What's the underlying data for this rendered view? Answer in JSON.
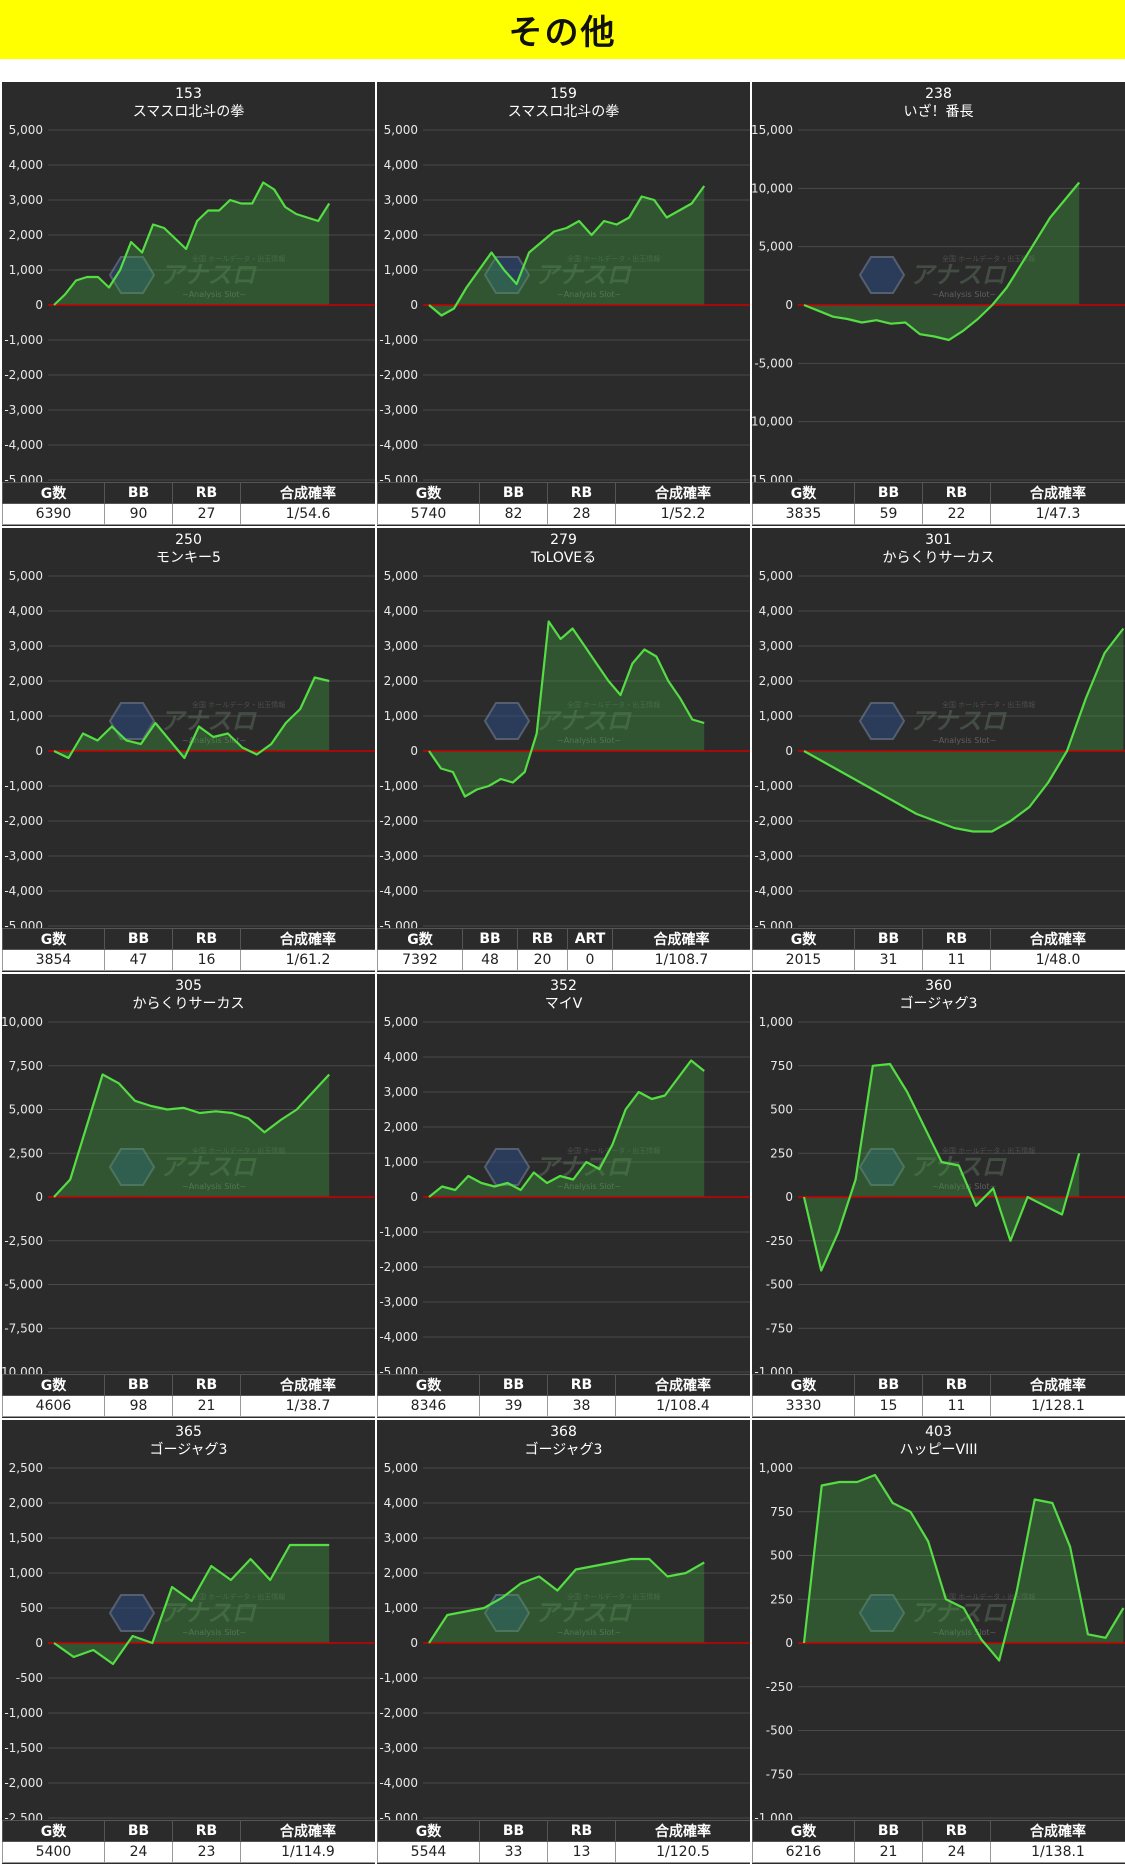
{
  "page": {
    "title": "その他"
  },
  "watermark": {
    "main": "アナスロ",
    "sub": "~Analysis Slot~",
    "top": "全国 ホールデータ・出玉情報"
  },
  "colors": {
    "line": "#55dd44",
    "fill": "rgba(60,160,60,0.35)",
    "zero": "#cc0000",
    "panel": "#2b2b2b",
    "header": "#ffff00"
  },
  "chart_data": [
    {
      "type": "area",
      "number": "153",
      "name": "スマスロ北斗の拳",
      "yticks": [
        "5,000",
        "4,000",
        "3,000",
        "2,000",
        "1,000",
        "0",
        "-1,000",
        "-2,000",
        "-3,000",
        "-4,000",
        "-5,000"
      ],
      "ylim": [
        -5000,
        5000
      ],
      "values": [
        0,
        300,
        700,
        800,
        800,
        500,
        1000,
        1800,
        1500,
        2300,
        2200,
        1900,
        1600,
        2400,
        2700,
        2700,
        3000,
        2900,
        2900,
        3500,
        3300,
        2800,
        2600,
        2500,
        2400,
        2900
      ],
      "columns": [
        "G数",
        "BB",
        "RB",
        "合成確率"
      ],
      "stats": [
        "6390",
        "90",
        "27",
        "1/54.6"
      ]
    },
    {
      "type": "area",
      "number": "159",
      "name": "スマスロ北斗の拳",
      "yticks": [
        "5,000",
        "4,000",
        "3,000",
        "2,000",
        "1,000",
        "0",
        "-1,000",
        "-2,000",
        "-3,000",
        "-4,000",
        "-5,000"
      ],
      "ylim": [
        -5000,
        5000
      ],
      "values": [
        0,
        -300,
        -100,
        500,
        1000,
        1500,
        1000,
        600,
        1500,
        1800,
        2100,
        2200,
        2400,
        2000,
        2400,
        2300,
        2500,
        3100,
        3000,
        2500,
        2700,
        2900,
        3400
      ],
      "columns": [
        "G数",
        "BB",
        "RB",
        "合成確率"
      ],
      "stats": [
        "5740",
        "82",
        "28",
        "1/52.2"
      ]
    },
    {
      "type": "area",
      "number": "238",
      "name": "いざ！番長",
      "yticks": [
        "15,000",
        "10,000",
        "5,000",
        "0",
        "-5,000",
        "-10,000",
        "-15,000"
      ],
      "ylim": [
        -15000,
        15000
      ],
      "values": [
        0,
        -500,
        -1000,
        -1200,
        -1500,
        -1300,
        -1600,
        -1500,
        -2500,
        -2700,
        -3000,
        -2200,
        -1200,
        0,
        1500,
        3500,
        5500,
        7500,
        9000,
        10500
      ],
      "columns": [
        "G数",
        "BB",
        "RB",
        "合成確率"
      ],
      "stats": [
        "3835",
        "59",
        "22",
        "1/47.3"
      ]
    },
    {
      "type": "area",
      "number": "250",
      "name": "モンキー5",
      "yticks": [
        "5,000",
        "4,000",
        "3,000",
        "2,000",
        "1,000",
        "0",
        "-1,000",
        "-2,000",
        "-3,000",
        "-4,000",
        "-5,000"
      ],
      "ylim": [
        -5000,
        5000
      ],
      "values": [
        0,
        -200,
        500,
        300,
        700,
        300,
        200,
        800,
        300,
        -200,
        700,
        400,
        500,
        100,
        -100,
        200,
        800,
        1200,
        2100,
        2000
      ],
      "columns": [
        "G数",
        "BB",
        "RB",
        "合成確率"
      ],
      "stats": [
        "3854",
        "47",
        "16",
        "1/61.2"
      ]
    },
    {
      "type": "area",
      "number": "279",
      "name": "ToLOVEる",
      "yticks": [
        "5,000",
        "4,000",
        "3,000",
        "2,000",
        "1,000",
        "0",
        "-1,000",
        "-2,000",
        "-3,000",
        "-4,000",
        "-5,000"
      ],
      "ylim": [
        -5000,
        5000
      ],
      "values": [
        0,
        -500,
        -600,
        -1300,
        -1100,
        -1000,
        -800,
        -900,
        -600,
        500,
        3700,
        3200,
        3500,
        3000,
        2500,
        2000,
        1600,
        2500,
        2900,
        2700,
        2000,
        1500,
        900,
        800
      ],
      "columns": [
        "G数",
        "BB",
        "RB",
        "ART",
        "合成確率"
      ],
      "stats": [
        "7392",
        "48",
        "20",
        "0",
        "1/108.7"
      ]
    },
    {
      "type": "area",
      "number": "301",
      "name": "からくりサーカス",
      "yticks": [
        "5,000",
        "4,000",
        "3,000",
        "2,000",
        "1,000",
        "0",
        "-1,000",
        "-2,000",
        "-3,000",
        "-4,000",
        "-5,000"
      ],
      "ylim": [
        -5000,
        5000
      ],
      "values": [
        0,
        -300,
        -600,
        -900,
        -1200,
        -1500,
        -1800,
        -2000,
        -2200,
        -2300,
        -2300,
        -2000,
        -1600,
        -900,
        0,
        1500,
        2800,
        3500
      ],
      "columns": [
        "G数",
        "BB",
        "RB",
        "合成確率"
      ],
      "stats": [
        "2015",
        "31",
        "11",
        "1/48.0"
      ]
    },
    {
      "type": "area",
      "number": "305",
      "name": "からくりサーカス",
      "yticks": [
        "10,000",
        "7,500",
        "5,000",
        "2,500",
        "0",
        "-2,500",
        "-5,000",
        "-7,500",
        "-10,000"
      ],
      "ylim": [
        -10000,
        10000
      ],
      "values": [
        0,
        1000,
        4000,
        7000,
        6500,
        5500,
        5200,
        5000,
        5100,
        4800,
        4900,
        4800,
        4500,
        3700,
        4400,
        5000,
        6000,
        7000
      ],
      "columns": [
        "G数",
        "BB",
        "RB",
        "合成確率"
      ],
      "stats": [
        "4606",
        "98",
        "21",
        "1/38.7"
      ]
    },
    {
      "type": "area",
      "number": "352",
      "name": "マイV",
      "yticks": [
        "5,000",
        "4,000",
        "3,000",
        "2,000",
        "1,000",
        "0",
        "-1,000",
        "-2,000",
        "-3,000",
        "-4,000",
        "-5,000"
      ],
      "ylim": [
        -5000,
        5000
      ],
      "values": [
        0,
        300,
        200,
        600,
        400,
        300,
        400,
        200,
        700,
        400,
        600,
        500,
        1000,
        800,
        1500,
        2500,
        3000,
        2800,
        2900,
        3400,
        3900,
        3600
      ],
      "columns": [
        "G数",
        "BB",
        "RB",
        "合成確率"
      ],
      "stats": [
        "8346",
        "39",
        "38",
        "1/108.4"
      ]
    },
    {
      "type": "area",
      "number": "360",
      "name": "ゴージャグ3",
      "yticks": [
        "1,000",
        "750",
        "500",
        "250",
        "0",
        "-250",
        "-500",
        "-750",
        "-1,000"
      ],
      "ylim": [
        -1000,
        1000
      ],
      "values": [
        0,
        -420,
        -200,
        100,
        750,
        760,
        600,
        400,
        200,
        180,
        -50,
        50,
        -250,
        0,
        -50,
        -100,
        250
      ],
      "columns": [
        "G数",
        "BB",
        "RB",
        "合成確率"
      ],
      "stats": [
        "3330",
        "15",
        "11",
        "1/128.1"
      ]
    },
    {
      "type": "area",
      "number": "365",
      "name": "ゴージャグ3",
      "yticks": [
        "2,500",
        "2,000",
        "1,500",
        "1,000",
        "500",
        "0",
        "-500",
        "-1,000",
        "-1,500",
        "-2,000",
        "-2,500"
      ],
      "ylim": [
        -2500,
        2500
      ],
      "values": [
        0,
        -200,
        -100,
        -300,
        100,
        0,
        800,
        600,
        1100,
        900,
        1200,
        900,
        1400,
        1400,
        1400
      ],
      "columns": [
        "G数",
        "BB",
        "RB",
        "合成確率"
      ],
      "stats": [
        "5400",
        "24",
        "23",
        "1/114.9"
      ]
    },
    {
      "type": "area",
      "number": "368",
      "name": "ゴージャグ3",
      "yticks": [
        "5,000",
        "4,000",
        "3,000",
        "2,000",
        "1,000",
        "0",
        "-1,000",
        "-2,000",
        "-3,000",
        "-4,000",
        "-5,000"
      ],
      "ylim": [
        -5000,
        5000
      ],
      "values": [
        0,
        800,
        900,
        1000,
        1300,
        1700,
        1900,
        1500,
        2100,
        2200,
        2300,
        2400,
        2400,
        1900,
        2000,
        2300
      ],
      "columns": [
        "G数",
        "BB",
        "RB",
        "合成確率"
      ],
      "stats": [
        "5544",
        "33",
        "13",
        "1/120.5"
      ]
    },
    {
      "type": "area",
      "number": "403",
      "name": "ハッピーVIII",
      "yticks": [
        "1,000",
        "750",
        "500",
        "250",
        "0",
        "-250",
        "-500",
        "-750",
        "-1,000"
      ],
      "ylim": [
        -1000,
        1000
      ],
      "values": [
        0,
        900,
        920,
        920,
        960,
        800,
        750,
        580,
        250,
        200,
        20,
        -100,
        300,
        820,
        800,
        550,
        50,
        30,
        200
      ],
      "columns": [
        "G数",
        "BB",
        "RB",
        "合成確率"
      ],
      "stats": [
        "6216",
        "21",
        "24",
        "1/138.1"
      ]
    }
  ]
}
